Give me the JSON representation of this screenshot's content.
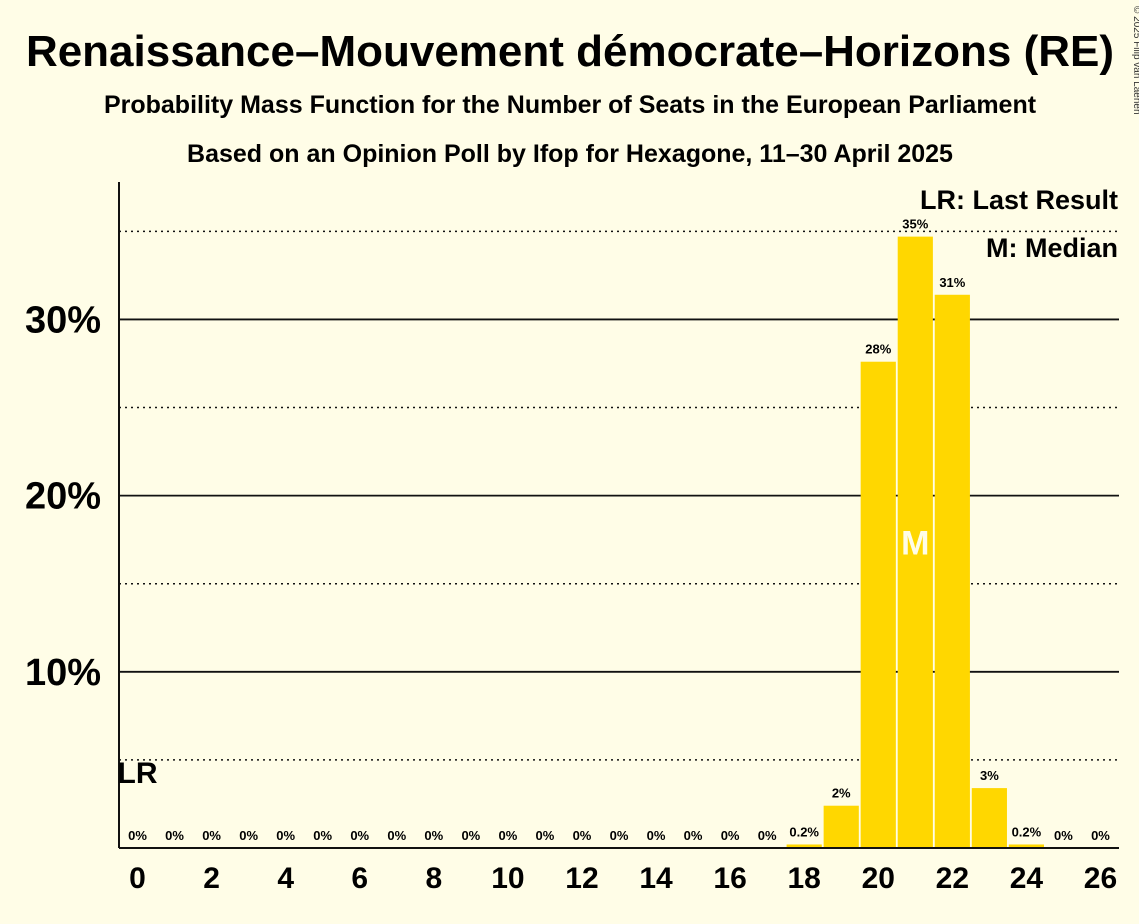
{
  "chart_data": {
    "type": "bar",
    "title": "Renaissance–Mouvement démocrate–Horizons (RE)",
    "subtitle1": "Probability Mass Function for the Number of Seats in the European Parliament",
    "subtitle2": "Based on an Opinion Poll by Ifop for Hexagone, 11–30 April 2025",
    "copyright": "© 2025 Filip van Laenen",
    "legend_lr": "LR: Last Result",
    "legend_m": "M: Median",
    "last_result_marker": "LR",
    "last_result_seat": 0,
    "median_marker": "M",
    "median_seat": 21,
    "x": [
      0,
      1,
      2,
      3,
      4,
      5,
      6,
      7,
      8,
      9,
      10,
      11,
      12,
      13,
      14,
      15,
      16,
      17,
      18,
      19,
      20,
      21,
      22,
      23,
      24,
      25,
      26
    ],
    "values": [
      0,
      0,
      0,
      0,
      0,
      0,
      0,
      0,
      0,
      0,
      0,
      0,
      0,
      0,
      0,
      0,
      0,
      0,
      0.2,
      2.4,
      27.6,
      34.7,
      31.4,
      3.4,
      0.2,
      0,
      0
    ],
    "bar_labels": [
      "0%",
      "0%",
      "0%",
      "0%",
      "0%",
      "0%",
      "0%",
      "0%",
      "0%",
      "0%",
      "0%",
      "0%",
      "0%",
      "0%",
      "0%",
      "0%",
      "0%",
      "0%",
      "0.2%",
      "2%",
      "28%",
      "35%",
      "31%",
      "3%",
      "0.2%",
      "0%",
      "0%"
    ],
    "x_ticks": [
      0,
      2,
      4,
      6,
      8,
      10,
      12,
      14,
      16,
      18,
      20,
      22,
      24,
      26
    ],
    "y_ticks": [
      10,
      20,
      30
    ],
    "y_tick_labels": [
      "10%",
      "20%",
      "30%"
    ],
    "y_minor_ticks": [
      5,
      15,
      25,
      35
    ],
    "ylim": [
      0,
      37.8
    ],
    "bar_color": "#FFD700",
    "background_color": "#FFFDE7"
  }
}
